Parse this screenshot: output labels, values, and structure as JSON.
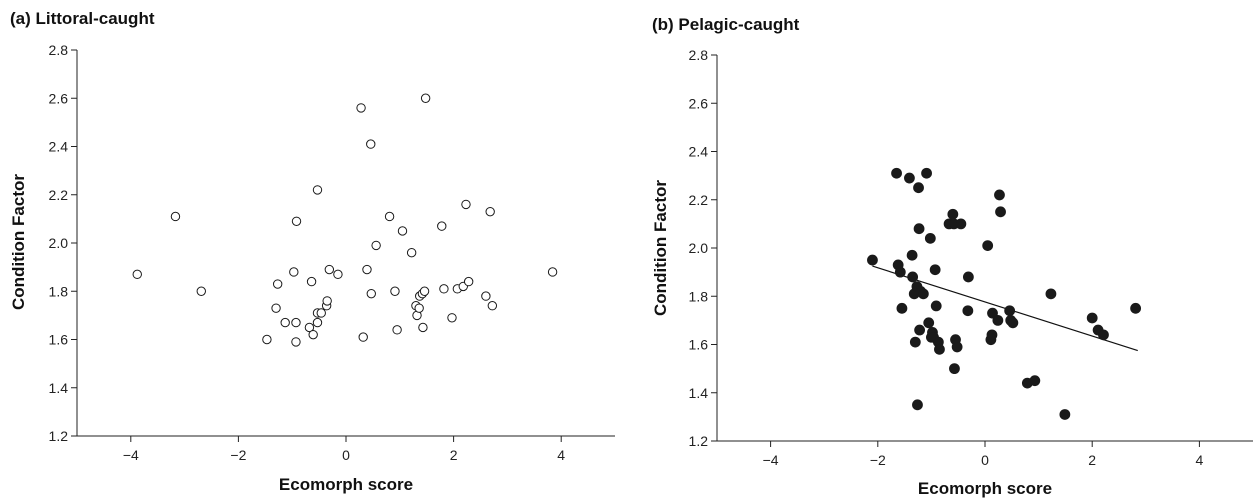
{
  "chart_data": [
    {
      "type": "scatter",
      "title": "(a) Littoral-caught",
      "xlabel": "Ecomorph score",
      "ylabel": "Condition Factor",
      "xlim": [
        -5,
        5
      ],
      "ylim": [
        1.2,
        2.8
      ],
      "xticks": [
        -4,
        -2,
        0,
        2,
        4
      ],
      "xtick_labels": [
        "−4",
        "−2",
        "0",
        "2",
        "4"
      ],
      "yticks": [
        1.2,
        1.4,
        1.6,
        1.8,
        2.0,
        2.2,
        2.4,
        2.6,
        2.8
      ],
      "ytick_labels": [
        "1.2",
        "1.4",
        "1.6",
        "1.8",
        "2.0",
        "2.2",
        "2.4",
        "2.6",
        "2.8"
      ],
      "marker": "open-circle",
      "grid": false,
      "trendline": null,
      "points": [
        {
          "x": -3.88,
          "y": 1.87
        },
        {
          "x": -3.17,
          "y": 2.11
        },
        {
          "x": -2.69,
          "y": 1.8
        },
        {
          "x": -1.47,
          "y": 1.6
        },
        {
          "x": -1.3,
          "y": 1.73
        },
        {
          "x": -1.27,
          "y": 1.83
        },
        {
          "x": -1.13,
          "y": 1.67
        },
        {
          "x": -0.97,
          "y": 1.88
        },
        {
          "x": -0.93,
          "y": 1.59
        },
        {
          "x": -0.93,
          "y": 1.67
        },
        {
          "x": -0.92,
          "y": 2.09
        },
        {
          "x": -0.68,
          "y": 1.65
        },
        {
          "x": -0.64,
          "y": 1.84
        },
        {
          "x": -0.61,
          "y": 1.62
        },
        {
          "x": -0.53,
          "y": 1.67
        },
        {
          "x": -0.53,
          "y": 1.71
        },
        {
          "x": -0.53,
          "y": 2.22
        },
        {
          "x": -0.46,
          "y": 1.71
        },
        {
          "x": -0.36,
          "y": 1.74
        },
        {
          "x": -0.35,
          "y": 1.76
        },
        {
          "x": -0.31,
          "y": 1.89
        },
        {
          "x": -0.15,
          "y": 1.87
        },
        {
          "x": 0.28,
          "y": 2.56
        },
        {
          "x": 0.32,
          "y": 1.61
        },
        {
          "x": 0.39,
          "y": 1.89
        },
        {
          "x": 0.46,
          "y": 2.41
        },
        {
          "x": 0.47,
          "y": 1.79
        },
        {
          "x": 0.56,
          "y": 1.99
        },
        {
          "x": 0.81,
          "y": 2.11
        },
        {
          "x": 0.91,
          "y": 1.8
        },
        {
          "x": 0.95,
          "y": 1.64
        },
        {
          "x": 1.05,
          "y": 2.05
        },
        {
          "x": 1.22,
          "y": 1.96
        },
        {
          "x": 1.3,
          "y": 1.74
        },
        {
          "x": 1.32,
          "y": 1.7
        },
        {
          "x": 1.36,
          "y": 1.73
        },
        {
          "x": 1.37,
          "y": 1.78
        },
        {
          "x": 1.42,
          "y": 1.79
        },
        {
          "x": 1.43,
          "y": 1.65
        },
        {
          "x": 1.46,
          "y": 1.8
        },
        {
          "x": 1.48,
          "y": 2.6
        },
        {
          "x": 1.78,
          "y": 2.07
        },
        {
          "x": 1.82,
          "y": 1.81
        },
        {
          "x": 1.97,
          "y": 1.69
        },
        {
          "x": 2.07,
          "y": 1.81
        },
        {
          "x": 2.18,
          "y": 1.82
        },
        {
          "x": 2.23,
          "y": 2.16
        },
        {
          "x": 2.28,
          "y": 1.84
        },
        {
          "x": 2.6,
          "y": 1.78
        },
        {
          "x": 2.68,
          "y": 2.13
        },
        {
          "x": 2.72,
          "y": 1.74
        },
        {
          "x": 3.84,
          "y": 1.88
        }
      ]
    },
    {
      "type": "scatter",
      "title": "(b) Pelagic-caught",
      "xlabel": "Ecomorph score",
      "ylabel": "Condition Factor",
      "xlim": [
        -5,
        5
      ],
      "ylim": [
        1.2,
        2.8
      ],
      "xticks": [
        -4,
        -2,
        0,
        2,
        4
      ],
      "xtick_labels": [
        "−4",
        "−2",
        "0",
        "2",
        "4"
      ],
      "yticks": [
        1.2,
        1.4,
        1.6,
        1.8,
        2.0,
        2.2,
        2.4,
        2.6,
        2.8
      ],
      "ytick_labels": [
        "1.2",
        "1.4",
        "1.6",
        "1.8",
        "2.0",
        "2.2",
        "2.4",
        "2.6",
        "2.8"
      ],
      "marker": "filled-circle",
      "grid": false,
      "trendline": {
        "x": [
          -2.1,
          2.85
        ],
        "y": [
          1.925,
          1.575
        ]
      },
      "points": [
        {
          "x": -2.1,
          "y": 1.95
        },
        {
          "x": -1.65,
          "y": 2.31
        },
        {
          "x": -1.62,
          "y": 1.93
        },
        {
          "x": -1.58,
          "y": 1.9
        },
        {
          "x": -1.55,
          "y": 1.75
        },
        {
          "x": -1.41,
          "y": 2.29
        },
        {
          "x": -1.36,
          "y": 1.97
        },
        {
          "x": -1.35,
          "y": 1.88
        },
        {
          "x": -1.32,
          "y": 1.81
        },
        {
          "x": -1.3,
          "y": 1.61
        },
        {
          "x": -1.27,
          "y": 1.84
        },
        {
          "x": -1.24,
          "y": 2.25
        },
        {
          "x": -1.23,
          "y": 2.08
        },
        {
          "x": -1.22,
          "y": 1.66
        },
        {
          "x": -1.2,
          "y": 1.82
        },
        {
          "x": -1.26,
          "y": 1.35
        },
        {
          "x": -1.15,
          "y": 1.81
        },
        {
          "x": -1.09,
          "y": 2.31
        },
        {
          "x": -1.05,
          "y": 1.69
        },
        {
          "x": -1.02,
          "y": 2.04
        },
        {
          "x": -1.0,
          "y": 1.63
        },
        {
          "x": -0.98,
          "y": 1.65
        },
        {
          "x": -0.96,
          "y": 1.63
        },
        {
          "x": -0.93,
          "y": 1.91
        },
        {
          "x": -0.91,
          "y": 1.76
        },
        {
          "x": -0.87,
          "y": 1.61
        },
        {
          "x": -0.85,
          "y": 1.58
        },
        {
          "x": -0.67,
          "y": 2.1
        },
        {
          "x": -0.6,
          "y": 2.14
        },
        {
          "x": -0.58,
          "y": 2.1
        },
        {
          "x": -0.57,
          "y": 1.5
        },
        {
          "x": -0.55,
          "y": 1.62
        },
        {
          "x": -0.52,
          "y": 1.59
        },
        {
          "x": -0.45,
          "y": 2.1
        },
        {
          "x": -0.32,
          "y": 1.74
        },
        {
          "x": -0.31,
          "y": 1.88
        },
        {
          "x": 0.05,
          "y": 2.01
        },
        {
          "x": 0.11,
          "y": 1.62
        },
        {
          "x": 0.13,
          "y": 1.64
        },
        {
          "x": 0.14,
          "y": 1.73
        },
        {
          "x": 0.24,
          "y": 1.7
        },
        {
          "x": 0.27,
          "y": 2.22
        },
        {
          "x": 0.29,
          "y": 2.15
        },
        {
          "x": 0.46,
          "y": 1.74
        },
        {
          "x": 0.48,
          "y": 1.7
        },
        {
          "x": 0.52,
          "y": 1.69
        },
        {
          "x": 0.79,
          "y": 1.44
        },
        {
          "x": 0.93,
          "y": 1.45
        },
        {
          "x": 1.23,
          "y": 1.81
        },
        {
          "x": 1.49,
          "y": 1.31
        },
        {
          "x": 2.0,
          "y": 1.71
        },
        {
          "x": 2.11,
          "y": 1.66
        },
        {
          "x": 2.21,
          "y": 1.64
        },
        {
          "x": 2.81,
          "y": 1.75
        }
      ]
    }
  ]
}
